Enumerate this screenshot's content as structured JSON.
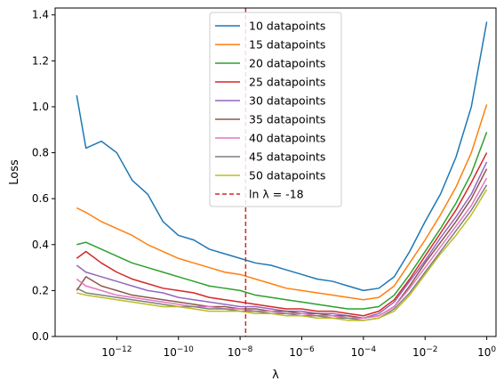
{
  "chart_data": {
    "type": "line",
    "xlabel": "λ",
    "ylabel": "Loss",
    "xscale": "log",
    "xlim_exponent": [
      -14,
      0.3
    ],
    "ylim": [
      0,
      1.43
    ],
    "x_ticks": [
      {
        "exp": -12,
        "base": "10",
        "sup": "−12"
      },
      {
        "exp": -10,
        "base": "10",
        "sup": "−10"
      },
      {
        "exp": -8,
        "base": "10",
        "sup": "−8"
      },
      {
        "exp": -6,
        "base": "10",
        "sup": "−6"
      },
      {
        "exp": -4,
        "base": "10",
        "sup": "−4"
      },
      {
        "exp": -2,
        "base": "10",
        "sup": "−2"
      },
      {
        "exp": 0,
        "base": "10",
        "sup": "0"
      }
    ],
    "y_ticks": [
      "0.0",
      "0.2",
      "0.4",
      "0.6",
      "0.8",
      "1.0",
      "1.2",
      "1.4"
    ],
    "y_tick_values": [
      0.0,
      0.2,
      0.4,
      0.6,
      0.8,
      1.0,
      1.2,
      1.4
    ],
    "x_exponents": [
      -13.3,
      -13,
      -12.5,
      -12,
      -11.5,
      -11,
      -10.5,
      -10,
      -9.5,
      -9,
      -8.5,
      -8,
      -7.5,
      -7,
      -6.5,
      -6,
      -5.5,
      -5,
      -4.5,
      -4,
      -3.5,
      -3,
      -2.5,
      -2,
      -1.5,
      -1,
      -0.5,
      0
    ],
    "series": [
      {
        "name": "10 datapoints",
        "color": "#1f77b4",
        "values": [
          1.05,
          0.82,
          0.85,
          0.8,
          0.68,
          0.62,
          0.5,
          0.44,
          0.42,
          0.38,
          0.36,
          0.34,
          0.32,
          0.31,
          0.29,
          0.27,
          0.25,
          0.24,
          0.22,
          0.2,
          0.21,
          0.26,
          0.37,
          0.5,
          0.62,
          0.78,
          1.0,
          1.37
        ]
      },
      {
        "name": "15 datapoints",
        "color": "#ff7f0e",
        "values": [
          0.56,
          0.54,
          0.5,
          0.47,
          0.44,
          0.4,
          0.37,
          0.34,
          0.32,
          0.3,
          0.28,
          0.27,
          0.25,
          0.23,
          0.21,
          0.2,
          0.19,
          0.18,
          0.17,
          0.16,
          0.17,
          0.22,
          0.32,
          0.42,
          0.53,
          0.65,
          0.8,
          1.01
        ]
      },
      {
        "name": "20 datapoints",
        "color": "#2ca02c",
        "values": [
          0.4,
          0.41,
          0.38,
          0.35,
          0.32,
          0.3,
          0.28,
          0.26,
          0.24,
          0.22,
          0.21,
          0.2,
          0.18,
          0.17,
          0.16,
          0.15,
          0.14,
          0.13,
          0.12,
          0.12,
          0.13,
          0.18,
          0.27,
          0.37,
          0.47,
          0.58,
          0.71,
          0.89
        ]
      },
      {
        "name": "25 datapoints",
        "color": "#d62728",
        "values": [
          0.34,
          0.37,
          0.32,
          0.28,
          0.25,
          0.23,
          0.21,
          0.2,
          0.19,
          0.17,
          0.16,
          0.15,
          0.14,
          0.13,
          0.12,
          0.12,
          0.11,
          0.11,
          0.1,
          0.09,
          0.11,
          0.16,
          0.25,
          0.35,
          0.45,
          0.55,
          0.67,
          0.8
        ]
      },
      {
        "name": "30 datapoints",
        "color": "#9467bd",
        "values": [
          0.31,
          0.28,
          0.26,
          0.24,
          0.22,
          0.2,
          0.19,
          0.17,
          0.16,
          0.15,
          0.14,
          0.13,
          0.13,
          0.12,
          0.11,
          0.11,
          0.1,
          0.1,
          0.09,
          0.08,
          0.1,
          0.15,
          0.24,
          0.33,
          0.43,
          0.52,
          0.62,
          0.76
        ]
      },
      {
        "name": "35 datapoints",
        "color": "#8c564b",
        "values": [
          0.2,
          0.26,
          0.22,
          0.2,
          0.18,
          0.17,
          0.16,
          0.15,
          0.14,
          0.13,
          0.13,
          0.12,
          0.12,
          0.11,
          0.11,
          0.1,
          0.1,
          0.09,
          0.09,
          0.08,
          0.09,
          0.13,
          0.22,
          0.32,
          0.41,
          0.5,
          0.6,
          0.73
        ]
      },
      {
        "name": "40 datapoints",
        "color": "#e377c2",
        "values": [
          0.25,
          0.22,
          0.2,
          0.18,
          0.17,
          0.16,
          0.15,
          0.14,
          0.13,
          0.13,
          0.12,
          0.12,
          0.11,
          0.11,
          0.1,
          0.1,
          0.09,
          0.09,
          0.08,
          0.08,
          0.09,
          0.13,
          0.21,
          0.3,
          0.39,
          0.48,
          0.57,
          0.69
        ]
      },
      {
        "name": "45 datapoints",
        "color": "#7f7f7f",
        "values": [
          0.21,
          0.19,
          0.18,
          0.17,
          0.16,
          0.15,
          0.14,
          0.13,
          0.13,
          0.12,
          0.12,
          0.11,
          0.11,
          0.1,
          0.1,
          0.09,
          0.09,
          0.08,
          0.08,
          0.07,
          0.08,
          0.12,
          0.19,
          0.28,
          0.37,
          0.46,
          0.55,
          0.66
        ]
      },
      {
        "name": "50 datapoints",
        "color": "#bcbd22",
        "values": [
          0.19,
          0.18,
          0.17,
          0.16,
          0.15,
          0.14,
          0.13,
          0.13,
          0.12,
          0.11,
          0.11,
          0.11,
          0.1,
          0.1,
          0.09,
          0.09,
          0.08,
          0.08,
          0.07,
          0.07,
          0.08,
          0.11,
          0.18,
          0.27,
          0.36,
          0.44,
          0.53,
          0.64
        ]
      }
    ],
    "vline": {
      "label": "ln λ = -18",
      "color": "#d62728",
      "x_exponent": -7.82
    },
    "legend_position": "upper-center",
    "grid": false
  }
}
